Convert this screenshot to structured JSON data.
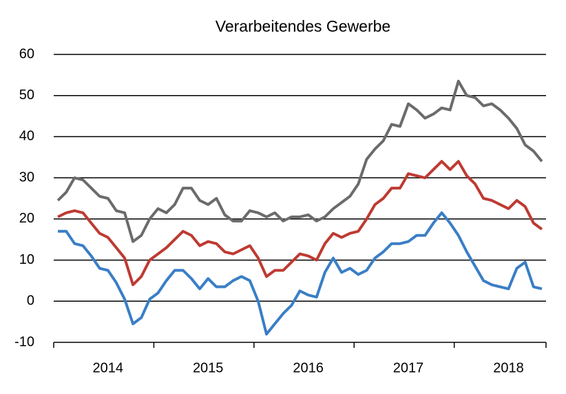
{
  "chart_data": {
    "type": "line",
    "title": "Verarbeitendes Gewerbe",
    "categories": [
      null,
      null,
      null,
      null,
      null,
      null,
      "2014",
      null,
      null,
      null,
      null,
      null,
      null,
      null,
      null,
      null,
      null,
      null,
      "2015",
      null,
      null,
      null,
      null,
      null,
      null,
      null,
      null,
      null,
      null,
      null,
      "2016",
      null,
      null,
      null,
      null,
      null,
      null,
      null,
      null,
      null,
      null,
      null,
      "2017",
      null,
      null,
      null,
      null,
      null,
      null,
      null,
      null,
      null,
      null,
      null,
      "2018",
      null,
      null,
      null,
      null
    ],
    "series": [
      {
        "color": "#6b6b6b",
        "values": [
          24.5,
          26.5,
          30,
          29.5,
          27.5,
          25.5,
          25,
          22,
          21.5,
          14.5,
          16,
          20,
          22.5,
          21.5,
          23.5,
          27.5,
          27.5,
          24.5,
          23.5,
          25,
          21,
          19.5,
          19.5,
          22,
          21.5,
          20.5,
          21.5,
          19.5,
          20.5,
          20.5,
          21,
          19.5,
          20.5,
          22.5,
          24,
          25.5,
          28.5,
          34.5,
          37,
          39,
          43,
          42.5,
          48,
          46.5,
          44.5,
          45.5,
          47,
          46.5,
          53.5,
          50,
          49.5,
          47.5,
          48,
          46.5,
          44.5,
          42,
          38,
          36.5,
          34
        ]
      },
      {
        "color": "#be3a32",
        "values": [
          20.5,
          21.5,
          22,
          21.5,
          19,
          16.5,
          15.5,
          13,
          10.5,
          4,
          6,
          10,
          11.5,
          13,
          15,
          17,
          16,
          13.5,
          14.5,
          14,
          12,
          11.5,
          12.5,
          13.5,
          10.5,
          6,
          7.5,
          7.5,
          9.5,
          11.5,
          11,
          10,
          14,
          16.5,
          15.5,
          16.5,
          17,
          20,
          23.5,
          25,
          27.5,
          27.5,
          31,
          30.5,
          30,
          32,
          34,
          32,
          34,
          30.5,
          28.5,
          25,
          24.5,
          23.5,
          22.5,
          24.5,
          23,
          19,
          17.5
        ]
      },
      {
        "color": "#3a7ec6",
        "values": [
          17,
          17,
          14,
          13.5,
          11,
          8,
          7.5,
          4.5,
          0.5,
          -5.5,
          -4,
          0.5,
          2,
          5,
          7.5,
          7.5,
          5.5,
          3,
          5.5,
          3.5,
          3.5,
          5,
          6,
          5,
          0,
          -8,
          -5.5,
          -3,
          -1,
          2.5,
          1.5,
          1,
          7,
          10.5,
          7,
          8,
          6.5,
          7.5,
          10.5,
          12,
          14,
          14,
          14.5,
          16,
          16,
          19,
          21.5,
          19,
          16,
          12,
          8.5,
          5,
          4,
          3.5,
          3,
          8,
          9.5,
          3.5,
          3
        ]
      }
    ],
    "ylim": [
      -10,
      60
    ],
    "yticks": [
      -10,
      0,
      10,
      20,
      30,
      40,
      50,
      60
    ],
    "grid": true
  }
}
